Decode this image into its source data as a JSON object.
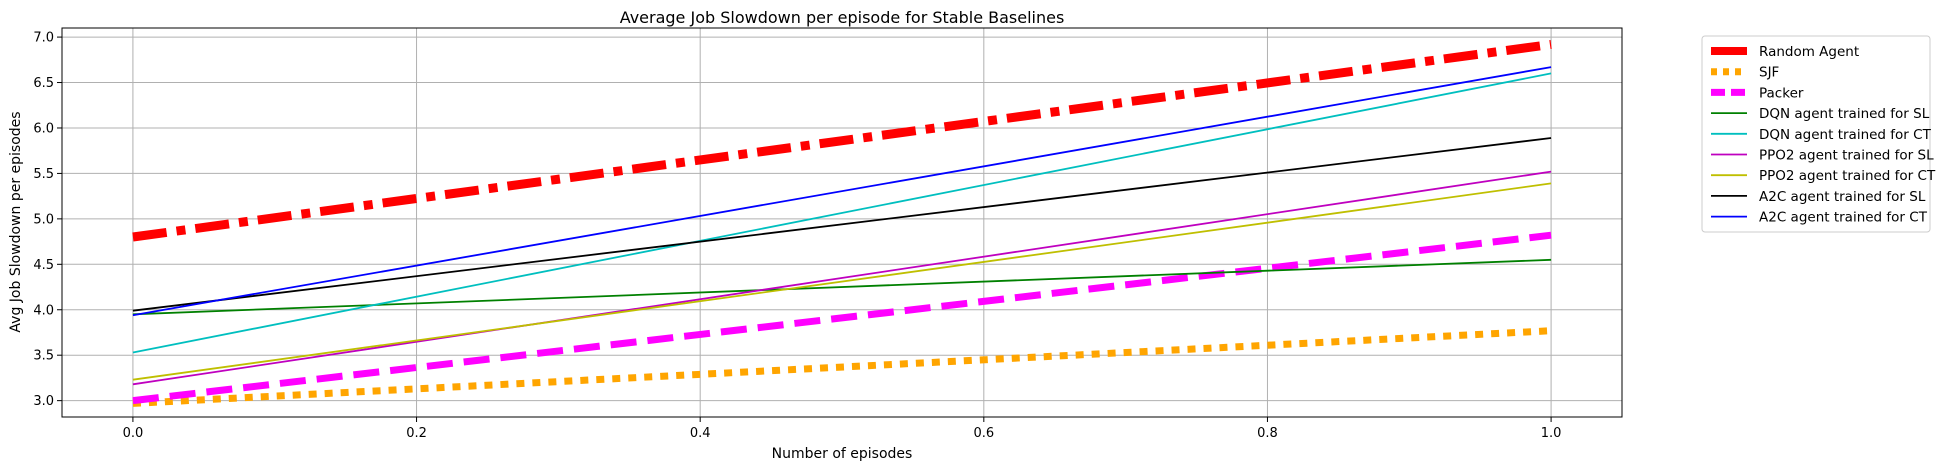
{
  "chart_data": {
    "type": "line",
    "title": "Average Job Slowdown per episode for Stable Baselines",
    "xlabel": "Number of episodes",
    "ylabel": "Avg Job Slowdown per episodes",
    "xlim": [
      -0.05,
      1.05
    ],
    "ylim": [
      2.82,
      7.1
    ],
    "xticks": [
      0.0,
      0.2,
      0.4,
      0.6,
      0.8,
      1.0
    ],
    "xtick_labels": [
      "0.0",
      "0.2",
      "0.4",
      "0.6",
      "0.8",
      "1.0"
    ],
    "yticks": [
      3.0,
      3.5,
      4.0,
      4.5,
      5.0,
      5.5,
      6.0,
      6.5,
      7.0
    ],
    "ytick_labels": [
      "3.0",
      "3.5",
      "4.0",
      "4.5",
      "5.0",
      "5.5",
      "6.0",
      "6.5",
      "7.0"
    ],
    "grid": true,
    "legend_position": "outside-right",
    "x": [
      0.0,
      1.0
    ],
    "series": [
      {
        "name": "Random Agent",
        "values": [
          4.8,
          6.92
        ],
        "color": "#ff0000",
        "style": "dashdot",
        "width": 9
      },
      {
        "name": "SJF",
        "values": [
          2.97,
          3.77
        ],
        "color": "#ffa500",
        "style": "dotted",
        "width": 7
      },
      {
        "name": "Packer",
        "values": [
          3.0,
          4.82
        ],
        "color": "#ff00ff",
        "style": "dashed",
        "width": 7
      },
      {
        "name": "DQN agent trained for SL",
        "values": [
          3.95,
          4.55
        ],
        "color": "#008000",
        "style": "solid",
        "width": 1.8
      },
      {
        "name": "DQN agent trained for CT",
        "values": [
          3.53,
          6.6
        ],
        "color": "#00bfbf",
        "style": "solid",
        "width": 1.8
      },
      {
        "name": "PPO2 agent trained for SL",
        "values": [
          3.18,
          5.52
        ],
        "color": "#bf00bf",
        "style": "solid",
        "width": 1.8
      },
      {
        "name": "PPO2 agent trained for CT",
        "values": [
          3.23,
          5.39
        ],
        "color": "#bfbf00",
        "style": "solid",
        "width": 1.8
      },
      {
        "name": "A2C agent trained for SL",
        "values": [
          3.99,
          5.89
        ],
        "color": "#000000",
        "style": "solid",
        "width": 1.8
      },
      {
        "name": "A2C agent trained for CT",
        "values": [
          3.94,
          6.67
        ],
        "color": "#0000ff",
        "style": "solid",
        "width": 1.8
      }
    ]
  }
}
